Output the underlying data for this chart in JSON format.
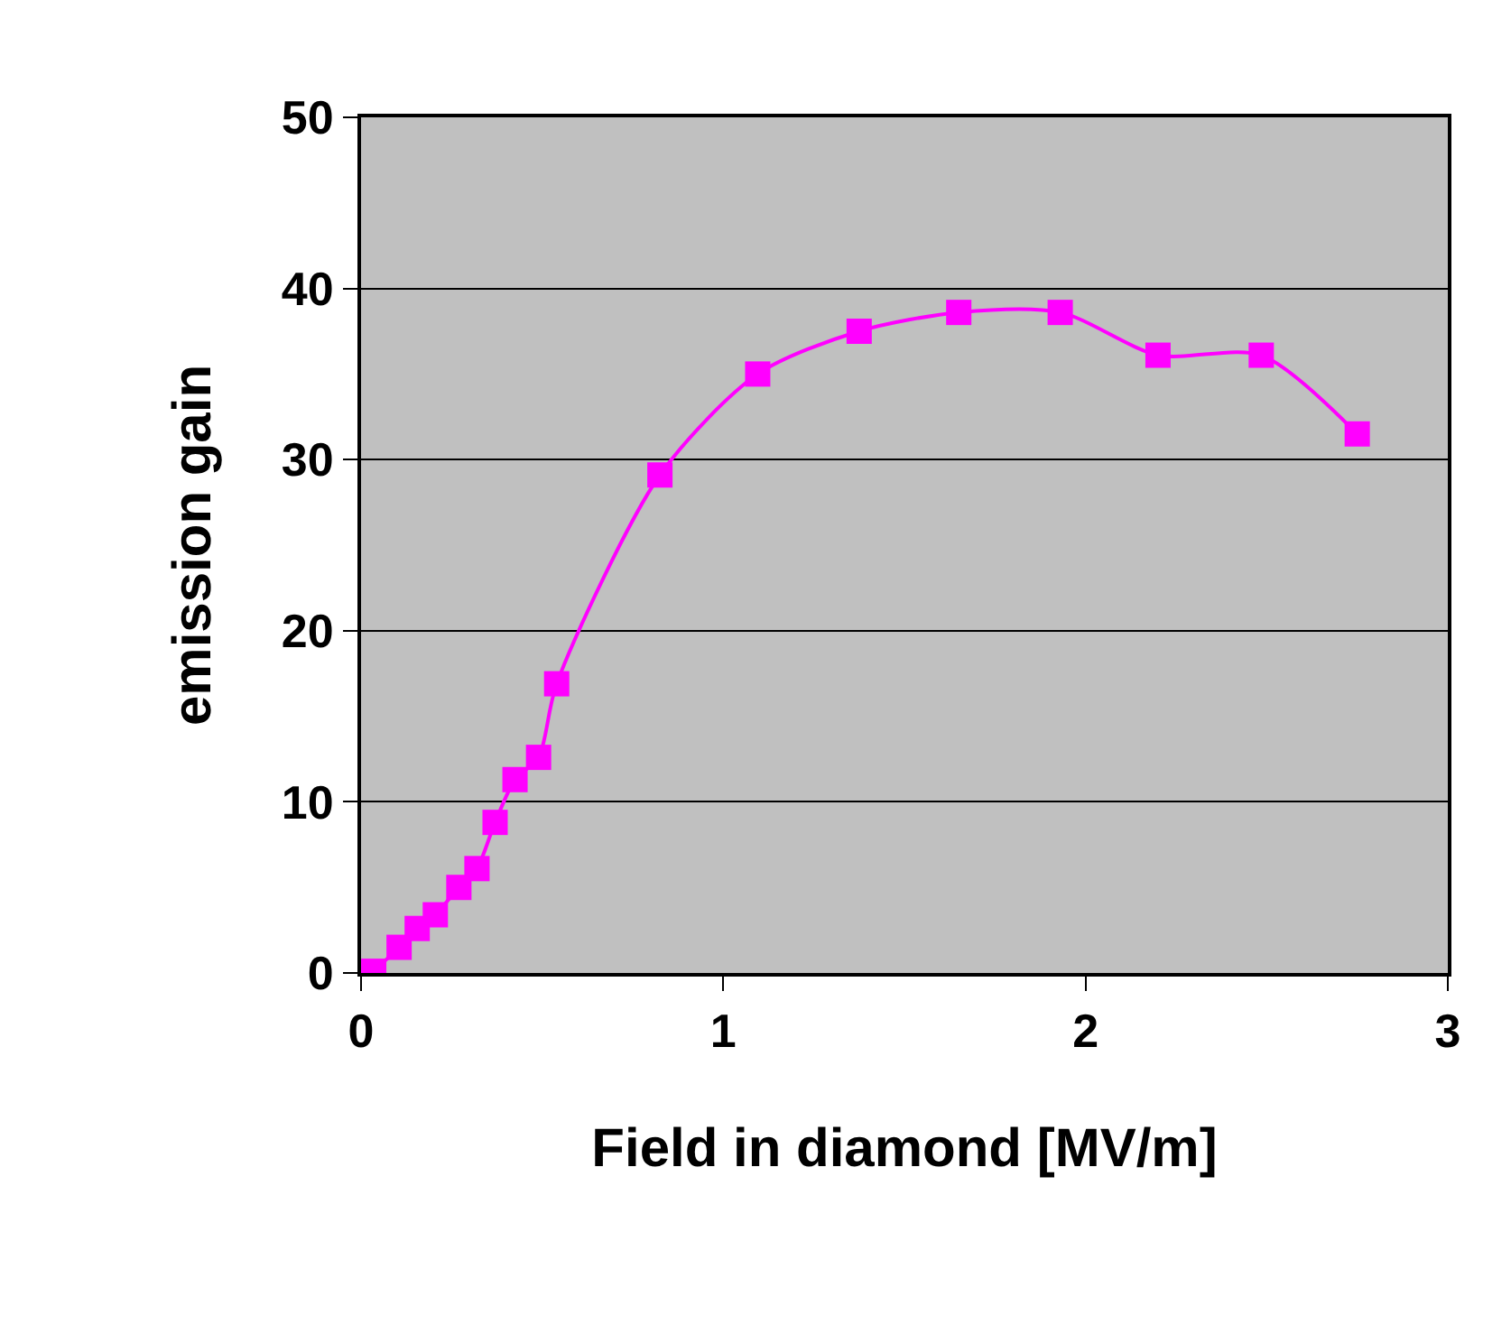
{
  "chart_data": {
    "type": "line",
    "xlabel": "Field in diamond [MV/m]",
    "ylabel": "emission gain",
    "x": [
      0.035,
      0.105,
      0.155,
      0.205,
      0.27,
      0.32,
      0.37,
      0.425,
      0.49,
      0.54,
      0.825,
      1.095,
      1.375,
      1.65,
      1.93,
      2.2,
      2.485,
      2.75
    ],
    "series": [
      {
        "color": "#ff00ff",
        "values": [
          0.1,
          1.5,
          2.6,
          3.4,
          5.0,
          6.1,
          8.8,
          11.3,
          12.6,
          16.9,
          29.1,
          35.0,
          37.5,
          38.6,
          38.6,
          36.1,
          36.1,
          31.5
        ]
      }
    ],
    "xlim": [
      0,
      3
    ],
    "xticks": [
      0,
      1,
      2,
      3
    ],
    "ylim": [
      0,
      50
    ],
    "yticks": [
      0,
      10,
      20,
      30,
      40,
      50
    ],
    "grid": "y",
    "legend": false,
    "marker": "square",
    "line_style": "solid"
  }
}
